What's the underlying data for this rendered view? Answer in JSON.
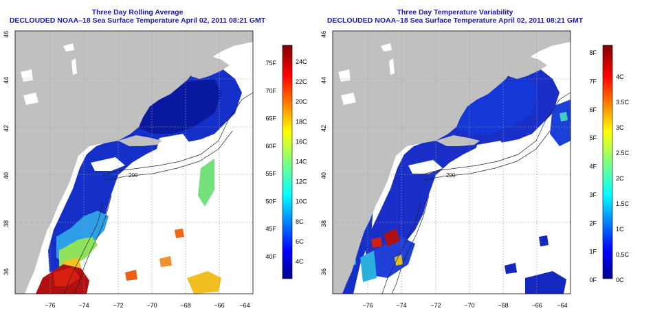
{
  "panels": [
    {
      "title": "Three Day Rolling Average",
      "subtitle": "DECLOUDED NOAA–18 Sea Surface Temperature April 02, 2011 08:21 GMT",
      "x_ticks": [
        "−76",
        "−74",
        "−72",
        "−70",
        "−68",
        "−66",
        "−64"
      ],
      "y_ticks": [
        "36",
        "38",
        "40",
        "42",
        "44",
        "46"
      ],
      "colorbar_f": [
        "40F",
        "45F",
        "50F",
        "55F",
        "60F",
        "65F",
        "70F",
        "75F"
      ],
      "colorbar_c": [
        "4C",
        "6C",
        "8C",
        "10C",
        "12C",
        "14C",
        "16C",
        "18C",
        "20C",
        "22C",
        "24C"
      ],
      "contour_label": "200"
    },
    {
      "title": "Three Day Temperature Variability",
      "subtitle": "DECLOUDED NOAA–18 Sea Surface Temperature April 02, 2011 08:21 GMT",
      "x_ticks": [
        "−76",
        "−74",
        "−72",
        "−70",
        "−68",
        "−66",
        "−64"
      ],
      "y_ticks": [
        "36",
        "38",
        "40",
        "42",
        "44",
        "46"
      ],
      "colorbar_f": [
        "0F",
        "1F",
        "2F",
        "3F",
        "4F",
        "5F",
        "6F",
        "7F",
        "8F"
      ],
      "colorbar_c": [
        "0C",
        "0.5C",
        "1C",
        "1.5C",
        "2C",
        "2.5C",
        "3C",
        "3.5C",
        "4C"
      ],
      "contour_label": "200"
    }
  ],
  "colors": {
    "title": "#1a1aa6",
    "land": "#c0c0c0",
    "ocean_cold": "#1530c8",
    "ocean_deep": "#0a1aa0",
    "warm_red": "#b01010"
  }
}
